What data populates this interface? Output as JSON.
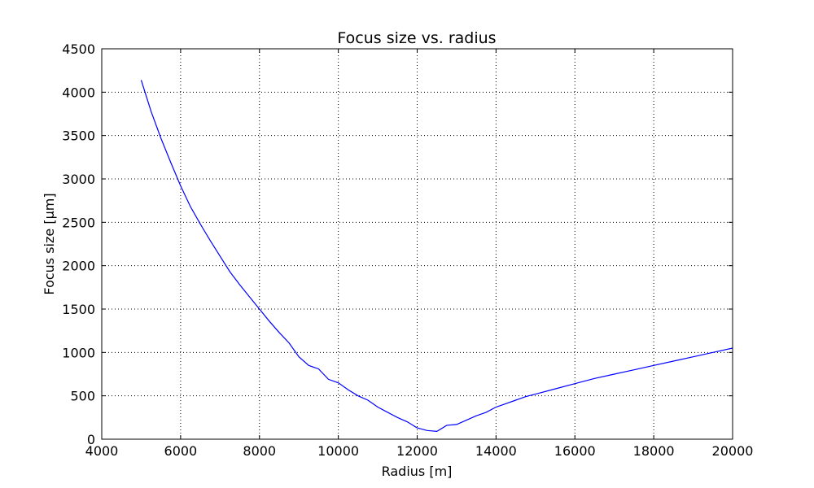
{
  "chart_data": {
    "type": "line",
    "title": "Focus size vs. radius",
    "xlabel": "Radius [m]",
    "ylabel": "Focus size [µm]",
    "xlim": [
      4000,
      20000
    ],
    "ylim": [
      0,
      4500
    ],
    "xticks": [
      4000,
      6000,
      8000,
      10000,
      12000,
      14000,
      16000,
      18000,
      20000
    ],
    "yticks": [
      0,
      500,
      1000,
      1500,
      2000,
      2500,
      3000,
      3500,
      4000,
      4500
    ],
    "grid": true,
    "line_color": "#0000ff",
    "series": [
      {
        "name": "Focus size",
        "x": [
          5000,
          5250,
          5500,
          5750,
          6000,
          6250,
          6500,
          6750,
          7000,
          7250,
          7500,
          7750,
          8000,
          8250,
          8500,
          8750,
          9000,
          9250,
          9500,
          9750,
          10000,
          10250,
          10500,
          10750,
          11000,
          11250,
          11500,
          11750,
          12000,
          12250,
          12500,
          12750,
          13000,
          13250,
          13500,
          13750,
          14000,
          14250,
          14500,
          14750,
          15000,
          15500,
          16000,
          16500,
          17000,
          17500,
          18000,
          18500,
          19000,
          19500,
          20000
        ],
        "y": [
          4140,
          3780,
          3470,
          3190,
          2920,
          2680,
          2480,
          2290,
          2110,
          1930,
          1780,
          1640,
          1500,
          1360,
          1230,
          1110,
          950,
          850,
          810,
          690,
          650,
          570,
          500,
          450,
          370,
          310,
          250,
          200,
          130,
          100,
          90,
          160,
          170,
          220,
          270,
          310,
          370,
          410,
          450,
          490,
          520,
          580,
          640,
          700,
          750,
          800,
          850,
          900,
          950,
          1000,
          1050
        ]
      }
    ]
  }
}
